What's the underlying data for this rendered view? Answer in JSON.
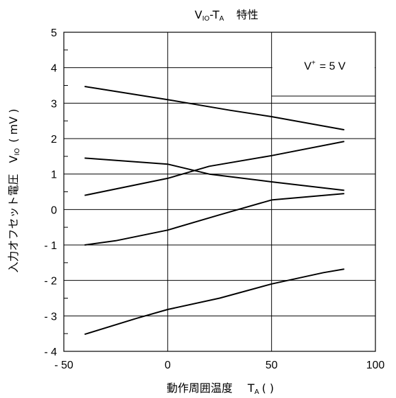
{
  "chart_data": {
    "type": "line",
    "title_main": "V",
    "title_sub": "IO",
    "title_mid": "-T",
    "title_sub2": "A",
    "title_tail": "特性",
    "xlabel_main": "動作周囲温度",
    "xlabel_sym": "T",
    "xlabel_sub": "A",
    "xlabel_unit": "(    )",
    "ylabel_main": "入力オフセット電圧",
    "ylabel_sym": "V",
    "ylabel_sub": "IO",
    "ylabel_unit": "( mV )",
    "annotation_main": "V",
    "annotation_sup": "+",
    "annotation_tail": "= 5 V",
    "xlim": [
      -50,
      100
    ],
    "ylim": [
      -4,
      5
    ],
    "x_ticks": [
      -50,
      0,
      50,
      100
    ],
    "x_tick_labels": [
      "- 50",
      "0",
      "50",
      "100"
    ],
    "y_ticks": [
      5,
      4,
      3,
      2,
      1,
      0,
      -1,
      -2,
      -3,
      -4
    ],
    "y_tick_labels": [
      "5",
      "4",
      "3",
      "2",
      "1",
      "0",
      "- 1",
      "- 2",
      "- 3",
      "- 4"
    ],
    "grid": true,
    "series": [
      {
        "x": [
          -40,
          0,
          30,
          50,
          85
        ],
        "y": [
          3.47,
          3.1,
          2.8,
          2.62,
          2.25
        ]
      },
      {
        "x": [
          -40,
          0,
          20,
          50,
          85
        ],
        "y": [
          0.4,
          0.88,
          1.22,
          1.52,
          1.92
        ]
      },
      {
        "x": [
          -40,
          0,
          20,
          50,
          85
        ],
        "y": [
          1.45,
          1.28,
          1.0,
          0.78,
          0.54
        ]
      },
      {
        "x": [
          -40,
          -25,
          0,
          25,
          50,
          85
        ],
        "y": [
          -1.0,
          -0.88,
          -0.58,
          -0.15,
          0.27,
          0.45
        ]
      },
      {
        "x": [
          -40,
          -15,
          0,
          25,
          50,
          75,
          85
        ],
        "y": [
          -3.52,
          -3.07,
          -2.82,
          -2.5,
          -2.1,
          -1.78,
          -1.68
        ]
      }
    ]
  }
}
